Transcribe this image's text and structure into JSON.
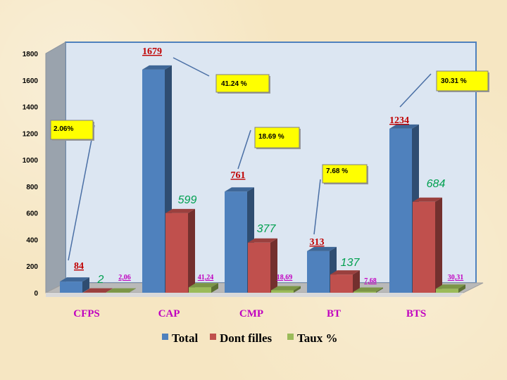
{
  "chart_data": {
    "type": "bar",
    "categories": [
      "CFPS",
      "CAP",
      "CMP",
      "BT",
      "BTS"
    ],
    "series": [
      {
        "name": "Total",
        "color": "#4f81bd",
        "values": [
          84,
          1679,
          761,
          313,
          1234
        ],
        "labels": [
          "84",
          "1679",
          "761",
          "313",
          "1234"
        ]
      },
      {
        "name": "Dont filles",
        "color": "#c0504d",
        "values": [
          2,
          599,
          377,
          137,
          684
        ],
        "labels": [
          "2",
          "599",
          "377",
          "137",
          "684"
        ]
      },
      {
        "name": "Taux %",
        "color": "#9bbb59",
        "values": [
          2.06,
          41.24,
          18.69,
          7.68,
          30.31
        ],
        "labels": [
          "2,06",
          "41,24",
          "18,69",
          "7,68",
          "30,31"
        ]
      }
    ],
    "ylim": [
      0,
      1800
    ],
    "yticks": [
      "0",
      "200",
      "400",
      "600",
      "800",
      "1000",
      "1200",
      "1400",
      "1600",
      "1800"
    ],
    "callouts": [
      "2.06%",
      "41.24 %",
      "18.69 %",
      "7.68 %",
      "30.31 %"
    ],
    "legend_position": "bottom",
    "grid": false
  }
}
